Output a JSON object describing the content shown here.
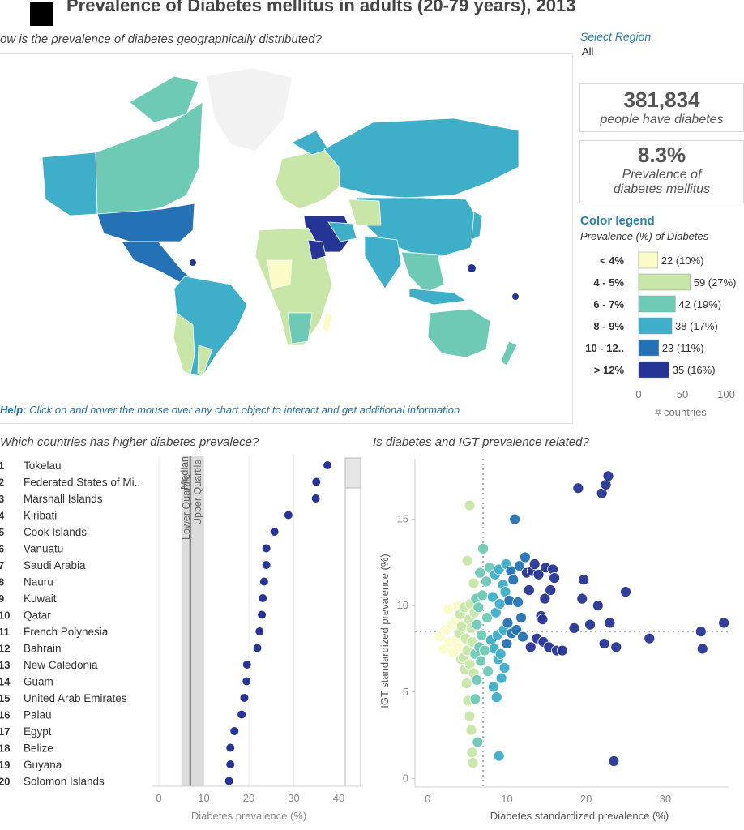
{
  "header": {
    "title": "Prevalence of Diabetes mellitus in adults (20-79 years), 2013"
  },
  "map_section": {
    "question": "ow is the prevalence of diabetes geographically distributed?",
    "help_prefix": "Help:",
    "help_text": " Click on and hover the mouse over any chart object to interact and get additional information"
  },
  "region_filter": {
    "label": "Select Region",
    "value": "All"
  },
  "kpis": {
    "people_value": "381,834",
    "people_label": "people have diabetes",
    "prevalence_value": "8.3%",
    "prevalence_label_1": "Prevalence of",
    "prevalence_label_2": "diabetes mellitus"
  },
  "colors": {
    "c1": "#fbfbc8",
    "c2": "#c7e6a8",
    "c3": "#6ec9b5",
    "c4": "#3eaec9",
    "c5": "#2472b5",
    "c6": "#263595",
    "accent": "#2d7fa6",
    "ocean_gray": "#f2f2f2"
  },
  "legend": {
    "title": "Color legend",
    "subtitle": "Prevalence (%) of Diabetes",
    "x_label": "# countries",
    "xlim": [
      0,
      100
    ],
    "ticks": [
      "0",
      "50",
      "100"
    ],
    "items": [
      {
        "label": "< 4%",
        "count": 22,
        "text": "22 (10%)",
        "color": "#fbfbc8"
      },
      {
        "label": "4 - 5%",
        "count": 59,
        "text": "59 (27%)",
        "color": "#c7e6a8"
      },
      {
        "label": "6 - 7%",
        "count": 42,
        "text": "42 (19%)",
        "color": "#6ec9b5"
      },
      {
        "label": "8 - 9%",
        "count": 38,
        "text": "38 (17%)",
        "color": "#3eaec9"
      },
      {
        "label": "10 - 12..",
        "count": 23,
        "text": "23 (11%)",
        "color": "#2472b5"
      },
      {
        "label": "> 12%",
        "count": 35,
        "text": "35 (16%)",
        "color": "#263595"
      }
    ]
  },
  "chart_data": [
    {
      "type": "bar",
      "title": "Color legend",
      "subtitle": "Prevalence (%) of Diabetes",
      "categories": [
        "< 4%",
        "4 - 5%",
        "6 - 7%",
        "8 - 9%",
        "10 - 12..",
        "> 12%"
      ],
      "values": [
        22,
        59,
        42,
        38,
        23,
        35
      ],
      "xlabel": "# countries",
      "xlim": [
        0,
        100
      ]
    },
    {
      "type": "scatter",
      "title": "Which countries has higher diabetes prevalece?",
      "xlabel": "Diabetes prevalence (%)",
      "xlim": [
        -2,
        41
      ],
      "xticks": [
        "0",
        "10",
        "20",
        "30",
        "40"
      ],
      "band_labels": [
        "Lower Quartile",
        "Median",
        "Upper Quartile"
      ],
      "lower_quartile": 5,
      "median": 7,
      "upper_quartile": 10,
      "ranks": [
        "1",
        "2",
        "3",
        "4",
        "5",
        "6",
        "7",
        "8",
        "9",
        "10",
        "11",
        "12",
        "13",
        "14",
        "15",
        "16",
        "17",
        "18",
        "19",
        "20"
      ],
      "countries": [
        "Tokelau",
        "Federated States of Mi..",
        "Marshall Islands",
        "Kiribati",
        "Cook Islands",
        "Vanuatu",
        "Saudi Arabia",
        "Nauru",
        "Kuwait",
        "Qatar",
        "French Polynesia",
        "Bahrain",
        "New Caledonia",
        "Guam",
        "United Arab Emirates",
        "Palau",
        "Egypt",
        "Belize",
        "Guyana",
        "Solomon Islands"
      ],
      "values": [
        37.5,
        35.0,
        34.9,
        28.8,
        25.7,
        23.9,
        23.9,
        23.4,
        23.1,
        22.9,
        22.4,
        21.9,
        19.6,
        19.5,
        19.0,
        18.4,
        16.8,
        15.9,
        15.9,
        15.6
      ]
    },
    {
      "type": "scatter",
      "title": "Is diabetes and IGT prevalence related?",
      "xlabel": "Diabetes standardized prevalence (%)",
      "ylabel": "IGT standardized prevalence (%)",
      "xlim": [
        -1,
        38
      ],
      "ylim": [
        -0.5,
        18.5
      ],
      "xticks": [
        "0",
        "10",
        "20",
        "30"
      ],
      "yticks": [
        "0",
        "5",
        "10",
        "15"
      ],
      "ref_x": 7,
      "ref_y": 8.5,
      "points": [
        [
          1.5,
          8.2
        ],
        [
          2.0,
          7.5
        ],
        [
          2.3,
          8.6
        ],
        [
          2.6,
          9.8
        ],
        [
          2.8,
          7.9
        ],
        [
          3.0,
          8.9
        ],
        [
          3.2,
          7.3
        ],
        [
          3.5,
          9.1
        ],
        [
          3.6,
          8.0
        ],
        [
          3.8,
          10.0
        ],
        [
          3.9,
          7.6
        ],
        [
          4.0,
          8.4
        ],
        [
          4.1,
          9.5
        ],
        [
          4.2,
          6.9
        ],
        [
          4.3,
          8.8
        ],
        [
          4.5,
          7.0
        ],
        [
          4.6,
          9.9
        ],
        [
          4.7,
          6.3
        ],
        [
          4.8,
          8.1
        ],
        [
          4.9,
          5.5
        ],
        [
          5.0,
          7.4
        ],
        [
          5.0,
          12.6
        ],
        [
          5.1,
          4.5
        ],
        [
          5.2,
          9.2
        ],
        [
          5.3,
          3.6
        ],
        [
          5.3,
          6.6
        ],
        [
          5.4,
          10.1
        ],
        [
          5.5,
          2.8
        ],
        [
          5.5,
          8.7
        ],
        [
          5.6,
          1.5
        ],
        [
          5.6,
          7.9
        ],
        [
          5.7,
          0.9
        ],
        [
          5.8,
          11.3
        ],
        [
          5.8,
          6.1
        ],
        [
          5.9,
          9.6
        ],
        [
          6.0,
          4.6
        ],
        [
          6.0,
          7.2
        ],
        [
          6.1,
          10.4
        ],
        [
          6.2,
          5.7
        ],
        [
          6.2,
          8.9
        ],
        [
          6.3,
          2.1
        ],
        [
          6.4,
          9.9
        ],
        [
          6.5,
          7.6
        ],
        [
          6.6,
          11.9
        ],
        [
          6.7,
          6.8
        ],
        [
          6.8,
          8.3
        ],
        [
          6.9,
          10.6
        ],
        [
          5.3,
          15.8
        ],
        [
          7.0,
          13.3
        ],
        [
          7.2,
          7.4
        ],
        [
          7.4,
          11.4
        ],
        [
          7.5,
          9.3
        ],
        [
          7.6,
          6.2
        ],
        [
          7.8,
          12.2
        ],
        [
          8.0,
          8.0
        ],
        [
          8.2,
          10.5
        ],
        [
          8.3,
          5.3
        ],
        [
          8.4,
          7.5
        ],
        [
          8.5,
          11.8
        ],
        [
          8.6,
          9.6
        ],
        [
          8.7,
          4.7
        ],
        [
          8.8,
          8.3
        ],
        [
          8.9,
          6.9
        ],
        [
          9.0,
          1.3
        ],
        [
          9.0,
          12.1
        ],
        [
          9.1,
          10.1
        ],
        [
          9.2,
          7.2
        ],
        [
          9.3,
          5.8
        ],
        [
          9.5,
          11.2
        ],
        [
          9.6,
          8.6
        ],
        [
          9.7,
          6.4
        ],
        [
          9.8,
          10.8
        ],
        [
          9.9,
          12.4
        ],
        [
          10.0,
          7.8
        ],
        [
          10.1,
          9.0
        ],
        [
          10.3,
          10.3
        ],
        [
          10.5,
          12.0
        ],
        [
          10.6,
          8.4
        ],
        [
          10.8,
          11.5
        ],
        [
          11.0,
          15.0
        ],
        [
          11.2,
          8.6
        ],
        [
          11.4,
          10.2
        ],
        [
          11.6,
          12.3
        ],
        [
          11.8,
          9.3
        ],
        [
          12.0,
          8.2
        ],
        [
          12.3,
          12.8
        ],
        [
          12.5,
          11.9
        ],
        [
          12.8,
          10.9
        ],
        [
          13.0,
          7.6
        ],
        [
          13.2,
          12.0
        ],
        [
          13.5,
          12.4
        ],
        [
          13.8,
          8.1
        ],
        [
          14.0,
          11.8
        ],
        [
          14.3,
          9.4
        ],
        [
          14.6,
          7.9
        ],
        [
          14.9,
          12.2
        ],
        [
          15.3,
          7.6
        ],
        [
          15.8,
          12.1
        ],
        [
          16.3,
          7.4
        ],
        [
          17.0,
          7.4
        ],
        [
          14.5,
          9.2
        ],
        [
          14.8,
          10.4
        ],
        [
          15.5,
          10.9
        ],
        [
          16.0,
          11.6
        ],
        [
          18.5,
          8.7
        ],
        [
          19.0,
          16.8
        ],
        [
          19.5,
          10.4
        ],
        [
          19.7,
          11.5
        ],
        [
          20.5,
          8.9
        ],
        [
          21.5,
          10.0
        ],
        [
          22.0,
          16.5
        ],
        [
          22.3,
          7.8
        ],
        [
          22.5,
          17.0
        ],
        [
          22.8,
          17.5
        ],
        [
          23.0,
          9.0
        ],
        [
          23.5,
          1.0
        ],
        [
          23.8,
          7.6
        ],
        [
          25.0,
          10.8
        ],
        [
          28.0,
          8.1
        ],
        [
          34.5,
          8.5
        ],
        [
          34.7,
          7.5
        ],
        [
          37.4,
          9.0
        ]
      ]
    }
  ]
}
